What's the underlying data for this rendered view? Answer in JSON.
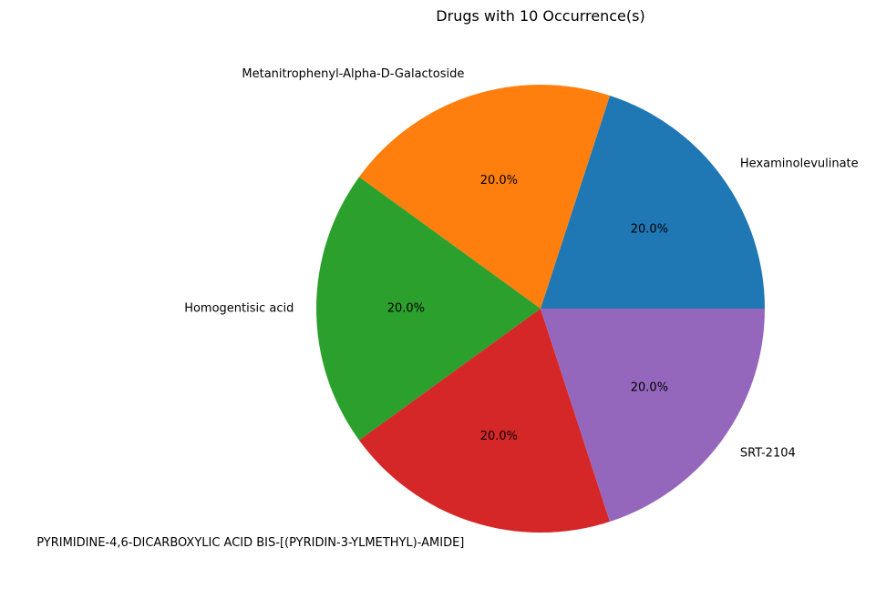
{
  "chart_data": {
    "type": "pie",
    "title": "Drugs with 10 Occurrence(s)",
    "slices": [
      {
        "label": "Hexaminolevulinate",
        "value": 20.0,
        "pct_label": "20.0%",
        "color": "#1f77b4"
      },
      {
        "label": "Metanitrophenyl-Alpha-D-Galactoside",
        "value": 20.0,
        "pct_label": "20.0%",
        "color": "#ff7f0e"
      },
      {
        "label": "Homogentisic acid",
        "value": 20.0,
        "pct_label": "20.0%",
        "color": "#2ca02c"
      },
      {
        "label": "PYRIMIDINE-4,6-DICARBOXYLIC ACID BIS-[(PYRIDIN-3-YLMETHYL)-AMIDE]",
        "value": 20.0,
        "pct_label": "20.0%",
        "color": "#d62728"
      },
      {
        "label": "SRT-2104",
        "value": 20.0,
        "pct_label": "20.0%",
        "color": "#9467bd"
      }
    ],
    "start_angle_deg": 0,
    "direction": "counterclockwise"
  }
}
